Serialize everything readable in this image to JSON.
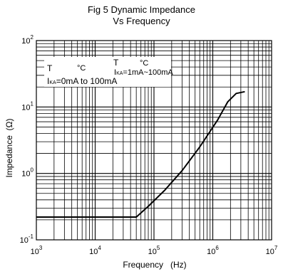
{
  "chart_data": {
    "type": "line",
    "title": "Fig 5 Dynamic Impedance",
    "subtitle": "Vs Frequency",
    "xlabel": "Frequency   (Hz)",
    "ylabel": "Impedance  (Ω)",
    "x_scale": "log",
    "y_scale": "log",
    "xlim": [
      1000,
      10000000
    ],
    "ylim": [
      0.1,
      100
    ],
    "grid": true,
    "x_ticks": [
      {
        "base": "10",
        "exp": "3"
      },
      {
        "base": "10",
        "exp": "4"
      },
      {
        "base": "10",
        "exp": "5"
      },
      {
        "base": "10",
        "exp": "6"
      },
      {
        "base": "10",
        "exp": "7"
      }
    ],
    "y_ticks": [
      {
        "base": "10",
        "exp": "-1"
      },
      {
        "base": "10",
        "exp": "0"
      },
      {
        "base": "10",
        "exp": "1"
      },
      {
        "base": "10",
        "exp": "2"
      }
    ],
    "annotations": {
      "line1_a": "T",
      "line1_b": "°C",
      "line1_c": "T",
      "line1_d": "°C",
      "line2_left": "I",
      "line2_left_sub": "KA",
      "line2_right": "=1mA~100mA",
      "line3_left": "I",
      "line3_left_sub": "KA",
      "line3_right": "=0mA to 100mA"
    },
    "series": [
      {
        "x": [
          1000,
          50000,
          80000,
          150000,
          300000,
          600000,
          1200000,
          1800000,
          2500000,
          3500000
        ],
        "y": [
          0.22,
          0.22,
          0.32,
          0.55,
          1.1,
          2.5,
          6.3,
          12,
          16,
          17
        ]
      }
    ]
  }
}
